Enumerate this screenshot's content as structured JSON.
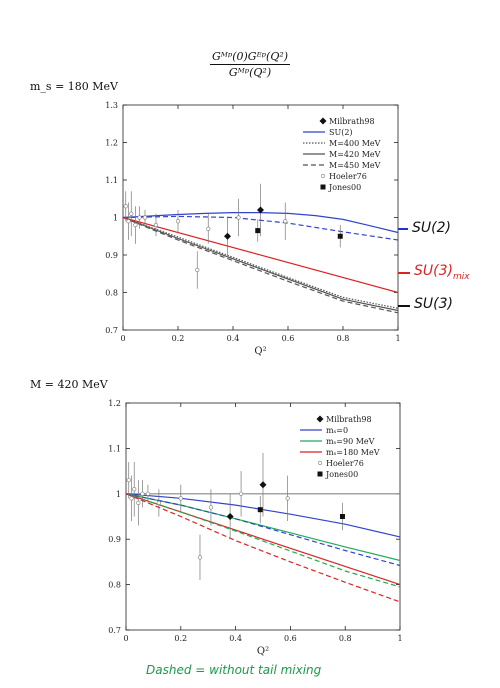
{
  "header": {
    "formula_numerator": "Gᴹᵖ(0)Gᴱᵖ(Q²)",
    "formula_denominator": "Gᴹᵖ(Q²)"
  },
  "annotations": {
    "su2": "SU(2)",
    "su3mix": "SU(3)",
    "su3mix_sub": "mix",
    "su3": "SU(3)",
    "footer": "Dashed = without tail mixing",
    "colors": {
      "blue": "#2233cc",
      "red": "#dd2222",
      "black": "#111111",
      "green": "#1a9a4a"
    }
  },
  "chart_data": [
    {
      "type": "line",
      "param_label": "m_s = 180 MeV",
      "xlabel": "Q²",
      "ylabel": "",
      "xlim": [
        0,
        1
      ],
      "ylim": [
        0.7,
        1.3
      ],
      "x_ticks": [
        "0",
        "0.2",
        "0.4",
        "0.6",
        "0.8",
        "1"
      ],
      "y_ticks": [
        "0.7",
        "0.8",
        "0.9",
        "1",
        "1.1",
        "1.2",
        "1.3"
      ],
      "legend_position": "top-right",
      "series": [
        {
          "name": "SU(2)",
          "style": "solid",
          "color": "#3344cc",
          "x": [
            0,
            0.1,
            0.2,
            0.3,
            0.4,
            0.5,
            0.6,
            0.7,
            0.8,
            0.9,
            1.0
          ],
          "y": [
            1.0,
            1.004,
            1.008,
            1.011,
            1.013,
            1.013,
            1.011,
            1.005,
            0.995,
            0.978,
            0.96
          ]
        },
        {
          "name": "M=400 MeV",
          "style": "dotted",
          "color": "#555555",
          "x": [
            0,
            0.1,
            0.2,
            0.4,
            0.6,
            0.8,
            1.0
          ],
          "y": [
            1.0,
            0.974,
            0.948,
            0.894,
            0.84,
            0.787,
            0.758
          ]
        },
        {
          "name": "M=420 MeV",
          "style": "solid",
          "color": "#555555",
          "x": [
            0,
            0.1,
            0.2,
            0.4,
            0.6,
            0.8,
            1.0
          ],
          "y": [
            1.0,
            0.972,
            0.944,
            0.89,
            0.836,
            0.782,
            0.752
          ]
        },
        {
          "name": "M=450 MeV",
          "style": "dashed",
          "color": "#555555",
          "x": [
            0,
            0.1,
            0.2,
            0.4,
            0.6,
            0.8,
            1.0
          ],
          "y": [
            1.0,
            0.97,
            0.94,
            0.885,
            0.83,
            0.777,
            0.746
          ]
        },
        {
          "name": "",
          "style": "solid",
          "color": "#dd2222",
          "x": [
            0,
            1.0
          ],
          "y": [
            1.0,
            0.8
          ]
        },
        {
          "name": "",
          "style": "dashed",
          "color": "#3344cc",
          "x": [
            0,
            0.2,
            0.4,
            0.6,
            0.8,
            1.0
          ],
          "y": [
            1.0,
            1.003,
            1.0,
            0.985,
            0.962,
            0.94
          ]
        }
      ],
      "points": [
        {
          "name": "Milbrath98",
          "marker": "diamond",
          "data": [
            {
              "x": 0.38,
              "y": 0.95,
              "err": 0.05
            },
            {
              "x": 0.5,
              "y": 1.02,
              "err": 0.07
            }
          ]
        },
        {
          "name": "Hoeler76",
          "marker": "circle",
          "data": [
            {
              "x": 0.01,
              "y": 1.03,
              "err": 0.04
            },
            {
              "x": 0.02,
              "y": 0.99,
              "err": 0.05
            },
            {
              "x": 0.03,
              "y": 1.01,
              "err": 0.06
            },
            {
              "x": 0.045,
              "y": 0.98,
              "err": 0.05
            },
            {
              "x": 0.06,
              "y": 1.0,
              "err": 0.03
            },
            {
              "x": 0.08,
              "y": 1.0,
              "err": 0.02
            },
            {
              "x": 0.12,
              "y": 0.98,
              "err": 0.03
            },
            {
              "x": 0.2,
              "y": 0.99,
              "err": 0.03
            },
            {
              "x": 0.27,
              "y": 0.86,
              "err": 0.05
            },
            {
              "x": 0.31,
              "y": 0.97,
              "err": 0.04
            },
            {
              "x": 0.42,
              "y": 1.0,
              "err": 0.05
            },
            {
              "x": 0.59,
              "y": 0.99,
              "err": 0.05
            }
          ]
        },
        {
          "name": "Jones00",
          "marker": "square",
          "data": [
            {
              "x": 0.49,
              "y": 0.965,
              "err": 0.03
            },
            {
              "x": 0.79,
              "y": 0.95,
              "err": 0.03
            }
          ]
        }
      ]
    },
    {
      "type": "line",
      "param_label": "M = 420 MeV",
      "xlabel": "Q²",
      "ylabel": "",
      "xlim": [
        0,
        1
      ],
      "ylim": [
        0.7,
        1.2
      ],
      "x_ticks": [
        "0",
        "0.2",
        "0.4",
        "0.6",
        "0.8",
        "1"
      ],
      "y_ticks": [
        "0.7",
        "0.8",
        "0.9",
        "1",
        "1.1",
        "1.2"
      ],
      "legend_position": "top-right",
      "series": [
        {
          "name": "",
          "style": "solid",
          "color": "#888888",
          "x": [
            0,
            1.0
          ],
          "y": [
            1.0,
            1.0
          ]
        },
        {
          "name": "mₛ=0",
          "style": "solid",
          "color": "#3344cc",
          "x": [
            0,
            0.2,
            0.4,
            0.6,
            0.8,
            1.0
          ],
          "y": [
            1.0,
            0.99,
            0.975,
            0.955,
            0.933,
            0.905
          ]
        },
        {
          "name": "mₛ=90 MeV",
          "style": "solid",
          "color": "#22aa55",
          "x": [
            0,
            0.2,
            0.4,
            0.6,
            0.8,
            1.0
          ],
          "y": [
            1.0,
            0.975,
            0.945,
            0.914,
            0.883,
            0.853
          ]
        },
        {
          "name": "mₛ=180 MeV",
          "style": "solid",
          "color": "#dd2222",
          "x": [
            0,
            1.0
          ],
          "y": [
            1.0,
            0.8
          ]
        },
        {
          "name": "",
          "style": "dashed",
          "color": "#3344cc",
          "x": [
            0,
            0.2,
            0.4,
            0.6,
            0.8,
            1.0
          ],
          "y": [
            1.0,
            0.975,
            0.945,
            0.91,
            0.875,
            0.842
          ]
        },
        {
          "name": "",
          "style": "dashed",
          "color": "#22aa55",
          "x": [
            0,
            0.2,
            0.4,
            0.6,
            0.8,
            1.0
          ],
          "y": [
            1.0,
            0.96,
            0.918,
            0.874,
            0.83,
            0.795
          ]
        },
        {
          "name": "",
          "style": "dashed",
          "color": "#dd2222",
          "x": [
            0,
            0.2,
            0.4,
            0.6,
            0.8,
            1.0
          ],
          "y": [
            1.0,
            0.95,
            0.897,
            0.85,
            0.805,
            0.762
          ]
        }
      ],
      "points": [
        {
          "name": "Milbrath98",
          "marker": "diamond",
          "data": [
            {
              "x": 0.38,
              "y": 0.95,
              "err": 0.05
            },
            {
              "x": 0.5,
              "y": 1.02,
              "err": 0.07
            }
          ]
        },
        {
          "name": "Hoeler76",
          "marker": "circle",
          "data": [
            {
              "x": 0.01,
              "y": 1.03,
              "err": 0.04
            },
            {
              "x": 0.02,
              "y": 0.99,
              "err": 0.05
            },
            {
              "x": 0.03,
              "y": 1.01,
              "err": 0.06
            },
            {
              "x": 0.045,
              "y": 0.98,
              "err": 0.05
            },
            {
              "x": 0.06,
              "y": 1.0,
              "err": 0.03
            },
            {
              "x": 0.08,
              "y": 1.0,
              "err": 0.02
            },
            {
              "x": 0.12,
              "y": 0.98,
              "err": 0.03
            },
            {
              "x": 0.2,
              "y": 0.99,
              "err": 0.03
            },
            {
              "x": 0.27,
              "y": 0.86,
              "err": 0.05
            },
            {
              "x": 0.31,
              "y": 0.97,
              "err": 0.04
            },
            {
              "x": 0.42,
              "y": 1.0,
              "err": 0.05
            },
            {
              "x": 0.59,
              "y": 0.99,
              "err": 0.05
            }
          ]
        },
        {
          "name": "Jones00",
          "marker": "square",
          "data": [
            {
              "x": 0.49,
              "y": 0.965,
              "err": 0.03
            },
            {
              "x": 0.79,
              "y": 0.95,
              "err": 0.03
            }
          ]
        }
      ]
    }
  ]
}
